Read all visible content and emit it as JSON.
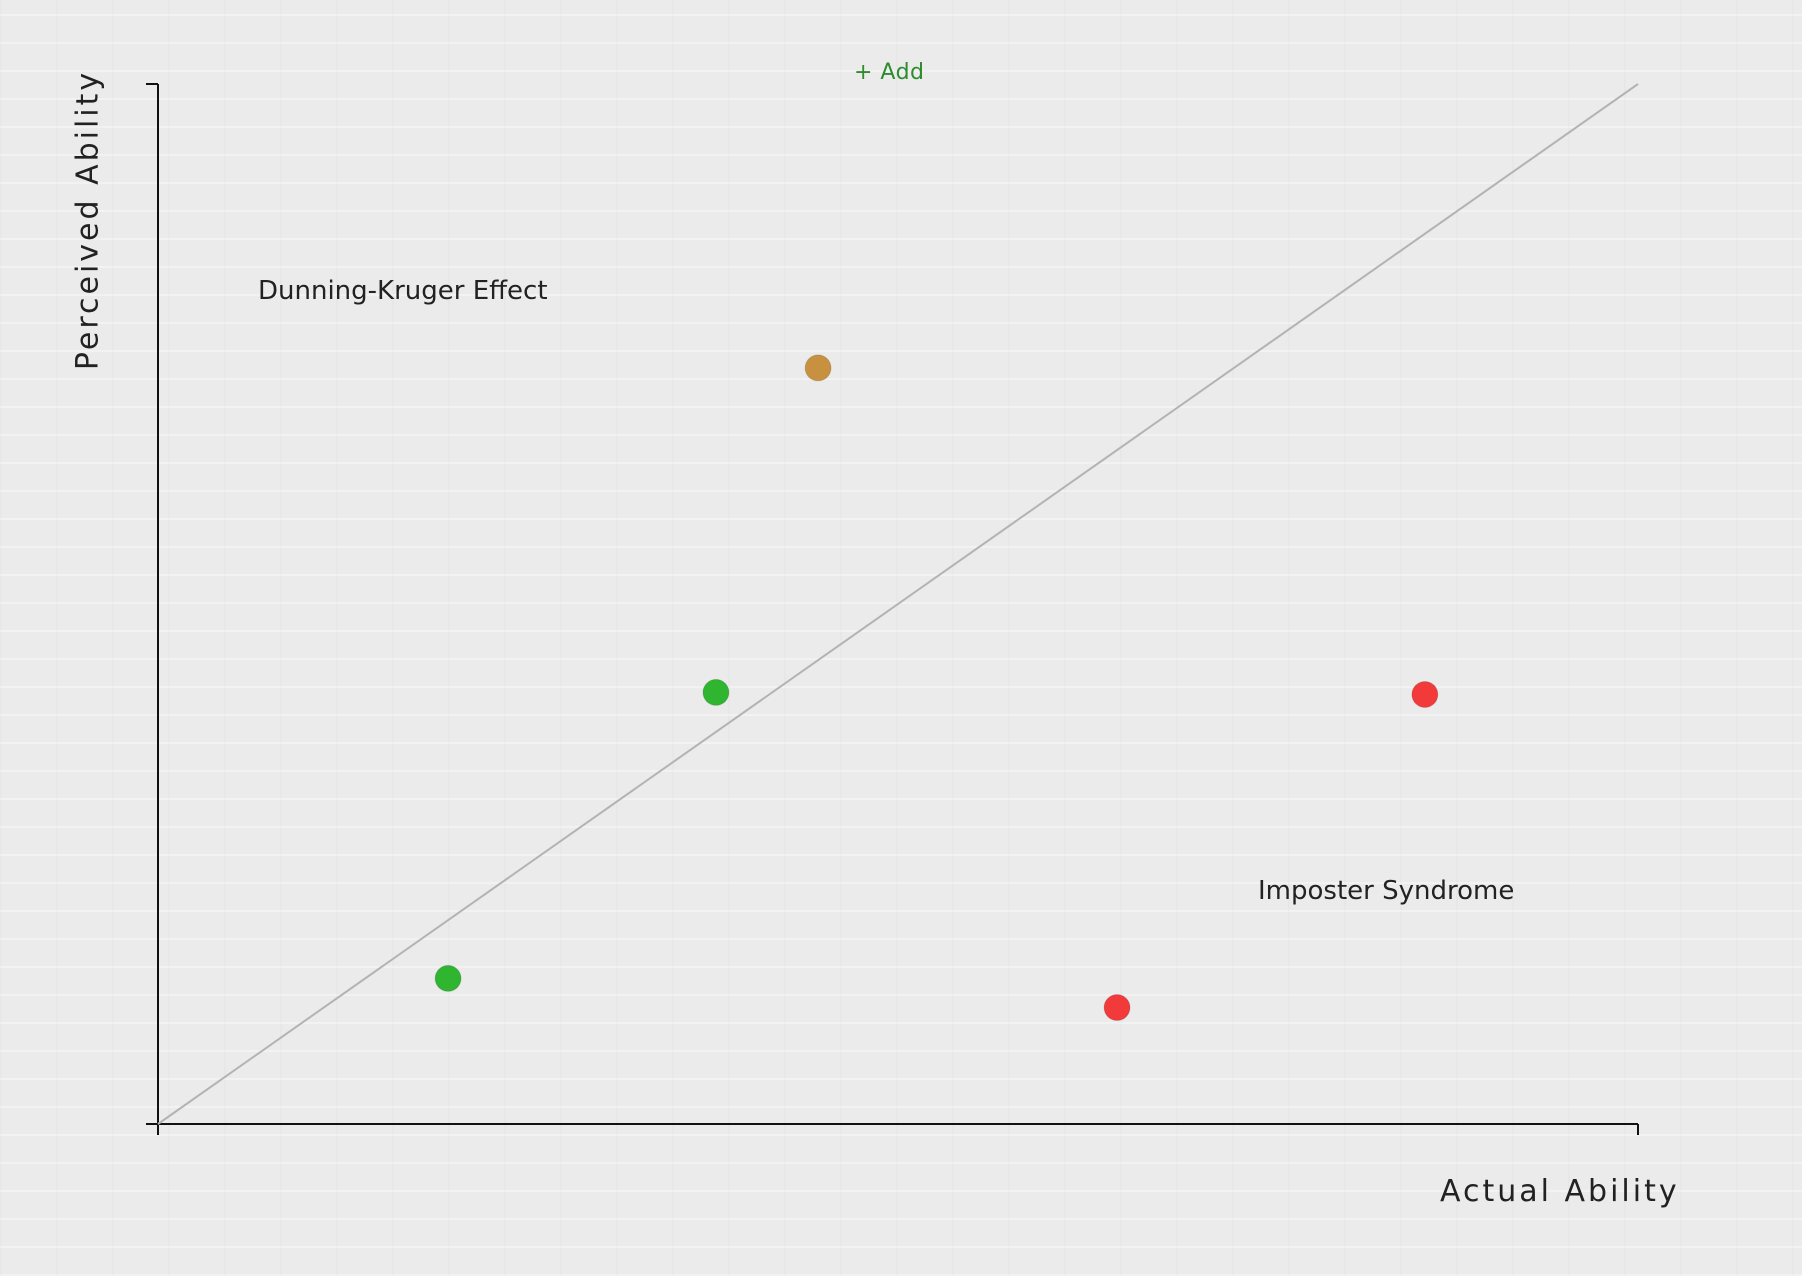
{
  "add_button": {
    "label": "+ Add"
  },
  "chart_data": {
    "type": "scatter",
    "xlabel": "Actual Ability",
    "ylabel": "Perceived Ability",
    "xlim": [
      0,
      100
    ],
    "ylim": [
      0,
      100
    ],
    "grid": false,
    "reference_line": {
      "from": [
        0,
        0
      ],
      "to": [
        100,
        100
      ]
    },
    "annotations": [
      {
        "text": "Dunning-Kruger Effect"
      },
      {
        "text": "Imposter Syndrome"
      }
    ],
    "points": [
      {
        "x": 19.6,
        "y": 14.0,
        "color": "#2fb52f"
      },
      {
        "x": 37.7,
        "y": 41.5,
        "color": "#2fb52f"
      },
      {
        "x": 44.6,
        "y": 72.7,
        "color": "#c8913f"
      },
      {
        "x": 64.8,
        "y": 11.2,
        "color": "#f23a3a"
      },
      {
        "x": 85.6,
        "y": 41.3,
        "color": "#f23a3a"
      }
    ]
  }
}
